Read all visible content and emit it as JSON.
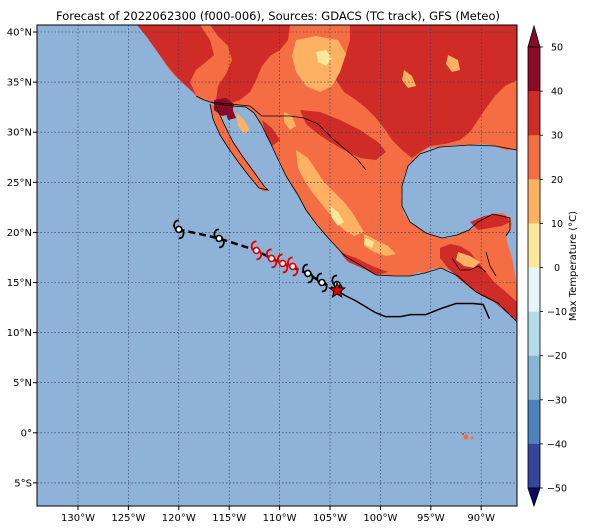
{
  "title": "Forecast of 2022062300 (f000-006), Sources: GDACS (TC track), GFS (Meteo)",
  "colorbar": {
    "label": "Max Temperature (°C)",
    "ticks": [
      "50",
      "40",
      "30",
      "20",
      "10",
      "0",
      "−10",
      "−20",
      "−30",
      "−40",
      "−50"
    ],
    "colors": {
      "above_40": "#8b0a26",
      "c30_40": "#cf2b27",
      "c20_30": "#f46d43",
      "c10_20": "#fdb163",
      "c0_10": "#fee79a",
      "cm10_0": "#e6f5f9",
      "cm20_m10": "#b3dbea",
      "cm30_m20": "#86b5d6",
      "cm40_m30": "#4e82bb",
      "cm50_m40": "#35459c",
      "below_m50": "#0b0b66"
    }
  },
  "map": {
    "ocean_color": "#8fb3d8",
    "lon_labels": [
      "130°W",
      "125°W",
      "120°W",
      "115°W",
      "110°W",
      "105°W",
      "100°W",
      "95°W",
      "90°W"
    ],
    "lat_labels": [
      "40°N",
      "35°N",
      "30°N",
      "25°N",
      "20°N",
      "15°N",
      "10°N",
      "5°N",
      "0°",
      "5°S"
    ]
  },
  "track": {
    "past_color": "#000000",
    "forecast_color": "#000000",
    "observed_symbol_color": "#e00000",
    "forecast_symbol_color": "#000000",
    "current_position": {
      "lon": -104.3,
      "lat": 14.2
    },
    "observed_path": [
      [
        -89.2,
        11.4
      ],
      [
        -89.8,
        12.8
      ],
      [
        -90.8,
        12.9
      ],
      [
        -92.5,
        12.9
      ],
      [
        -94.0,
        12.4
      ],
      [
        -95.5,
        11.8
      ],
      [
        -97.0,
        11.8
      ],
      [
        -98.0,
        11.6
      ],
      [
        -99.5,
        11.6
      ],
      [
        -100.5,
        12.0
      ],
      [
        -101.5,
        12.6
      ],
      [
        -102.5,
        13.2
      ],
      [
        -103.5,
        13.7
      ],
      [
        -104.3,
        14.2
      ]
    ],
    "forecast_path": [
      [
        -104.3,
        14.2
      ],
      [
        -105.8,
        15.0
      ],
      [
        -107.2,
        15.9
      ],
      [
        -108.7,
        16.5
      ],
      [
        -109.7,
        16.9
      ],
      [
        -110.8,
        17.4
      ],
      [
        -112.3,
        18.2
      ],
      [
        -116.0,
        19.4
      ],
      [
        -120.0,
        20.3
      ]
    ],
    "observed_symbols": [
      [
        -108.7,
        16.6
      ],
      [
        -109.7,
        16.9
      ],
      [
        -110.8,
        17.4
      ],
      [
        -112.3,
        18.2
      ]
    ],
    "forecast_symbols": [
      [
        -104.3,
        14.8
      ],
      [
        -105.8,
        15.0
      ],
      [
        -107.2,
        15.9
      ],
      [
        -116.0,
        19.4
      ],
      [
        -120.0,
        20.3
      ]
    ]
  }
}
